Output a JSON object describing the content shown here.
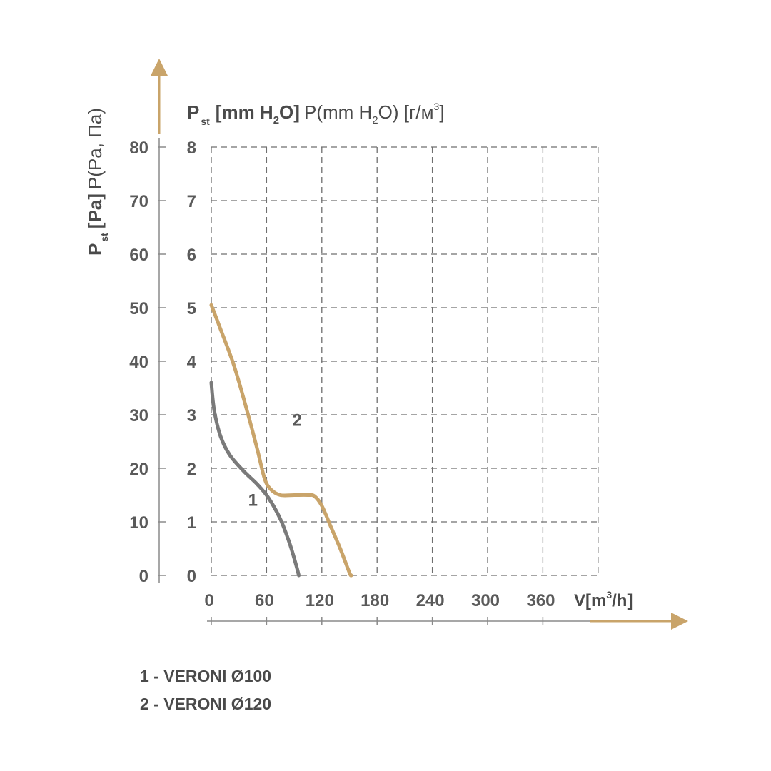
{
  "chart_data": {
    "type": "line",
    "y_pa_title": {
      "main": "P",
      "sub": "st",
      "bracket": "[Pa]",
      "rest": "P(Pa, Па)"
    },
    "y_mm_title": {
      "main": "P",
      "sub": "st",
      "bracket_pre": "[mm H",
      "bracket_sub": "2",
      "bracket_post": "O]",
      "rest_pre": "P(mm H",
      "rest_sub": "2",
      "rest_post": "O) [г/м",
      "rest_sup": "3",
      "rest_end": "]"
    },
    "x_title": {
      "pre": "V[m",
      "sup": "3",
      "post": "/h]"
    },
    "x_ticks": [
      "0",
      "60",
      "120",
      "180",
      "240",
      "300",
      "360"
    ],
    "y_pa_ticks": [
      "0",
      "10",
      "20",
      "30",
      "40",
      "50",
      "60",
      "70",
      "80"
    ],
    "y_mm_ticks": [
      "0",
      "1",
      "2",
      "3",
      "4",
      "5",
      "6",
      "7",
      "8"
    ],
    "xlim": [
      0,
      420
    ],
    "ylim_pa": [
      0,
      80
    ],
    "grid": true,
    "colors": {
      "series1": "#7a7a7a",
      "series2": "#c9a46a",
      "arrows": "#c9a46a",
      "text": "#4a4a4a"
    },
    "series": [
      {
        "name": "1",
        "points": [
          [
            0,
            36
          ],
          [
            3,
            31
          ],
          [
            10,
            26
          ],
          [
            20,
            22.5
          ],
          [
            35,
            19.5
          ],
          [
            50,
            17
          ],
          [
            62,
            14.5
          ],
          [
            75,
            10.5
          ],
          [
            85,
            6
          ],
          [
            92,
            2
          ],
          [
            95,
            0
          ]
        ]
      },
      {
        "name": "2",
        "points": [
          [
            0,
            50.5
          ],
          [
            10,
            46
          ],
          [
            25,
            39
          ],
          [
            40,
            30
          ],
          [
            50,
            23.5
          ],
          [
            58,
            18
          ],
          [
            65,
            16
          ],
          [
            75,
            15
          ],
          [
            90,
            15
          ],
          [
            105,
            15
          ],
          [
            112,
            14.8
          ],
          [
            120,
            13
          ],
          [
            130,
            9
          ],
          [
            140,
            5
          ],
          [
            150,
            0.5
          ],
          [
            152,
            0
          ]
        ]
      }
    ]
  },
  "legend": [
    {
      "text": "1 - VERONI Ø100"
    },
    {
      "text": "2 - VERONI Ø120"
    }
  ]
}
